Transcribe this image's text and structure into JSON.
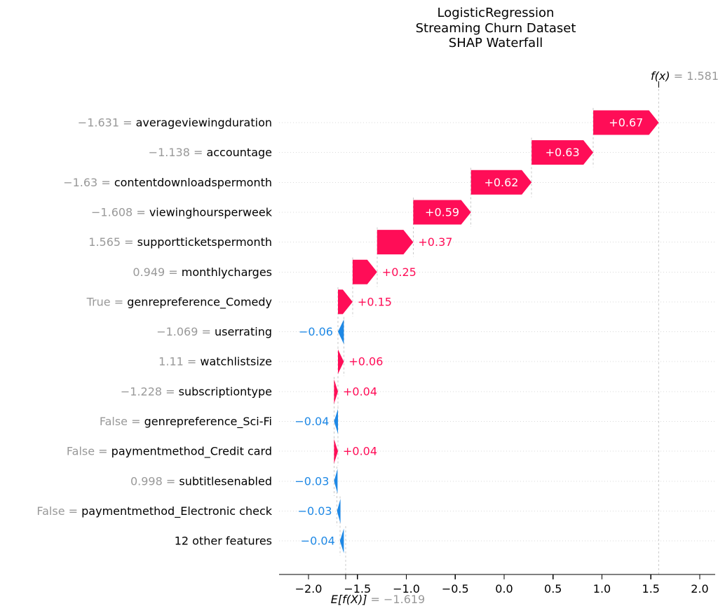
{
  "title": {
    "line1": "LogisticRegression",
    "line2": "Streaming Churn Dataset",
    "line3": "SHAP Waterfall"
  },
  "annotations": {
    "fx": {
      "name": "f(x)",
      "value_text": " = 1.581"
    },
    "ef": {
      "name": "E[f(X)]",
      "value_text": " = −1.619"
    }
  },
  "colors": {
    "positive": "#ff0d57",
    "negative": "#1e88e5",
    "muted_text": "#999999",
    "gridline": "#d9d9d9",
    "connector": "#c9c9c9",
    "axis": "#000000",
    "bar_inner_label": "#ffffff"
  },
  "chart_data": {
    "type": "bar",
    "subtype": "shap-waterfall",
    "title": "LogisticRegression\nStreaming Churn Dataset\nSHAP Waterfall",
    "base_value": -1.619,
    "prediction": 1.581,
    "base_value_label": "E[f(X)] = −1.619",
    "prediction_label": "f(x) = 1.581",
    "xlim": [
      -2.3,
      2.16
    ],
    "x_ticks": [
      -2.0,
      -1.5,
      -1.0,
      -0.5,
      0.0,
      0.5,
      1.0,
      1.5,
      2.0
    ],
    "grid": "dotted horizontal line per feature row",
    "legend": "none",
    "rows": [
      {
        "value": "−1.631",
        "feature": "averageviewingduration",
        "shap": 0.67,
        "label": "+0.67"
      },
      {
        "value": "−1.138",
        "feature": "accountage",
        "shap": 0.63,
        "label": "+0.63"
      },
      {
        "value": "−1.63",
        "feature": "contentdownloadspermonth",
        "shap": 0.62,
        "label": "+0.62"
      },
      {
        "value": "−1.608",
        "feature": "viewinghoursperweek",
        "shap": 0.59,
        "label": "+0.59"
      },
      {
        "value": "1.565",
        "feature": "supportticketspermonth",
        "shap": 0.37,
        "label": "+0.37"
      },
      {
        "value": "0.949",
        "feature": "monthlycharges",
        "shap": 0.25,
        "label": "+0.25"
      },
      {
        "value": "True",
        "feature": "genrepreference_Comedy",
        "shap": 0.15,
        "label": "+0.15"
      },
      {
        "value": "−1.069",
        "feature": "userrating",
        "shap": -0.06,
        "label": "−0.06"
      },
      {
        "value": "1.11",
        "feature": "watchlistsize",
        "shap": 0.06,
        "label": "+0.06"
      },
      {
        "value": "−1.228",
        "feature": "subscriptiontype",
        "shap": 0.04,
        "label": "+0.04"
      },
      {
        "value": "False",
        "feature": "genrepreference_Sci-Fi",
        "shap": -0.04,
        "label": "−0.04"
      },
      {
        "value": "False",
        "feature": "paymentmethod_Credit card",
        "shap": 0.04,
        "label": "+0.04"
      },
      {
        "value": "0.998",
        "feature": "subtitlesenabled",
        "shap": -0.03,
        "label": "−0.03"
      },
      {
        "value": "False",
        "feature": "paymentmethod_Electronic check",
        "shap": -0.03,
        "label": "−0.03"
      },
      {
        "value": null,
        "feature": "12 other features",
        "shap": -0.04,
        "label": "−0.04"
      }
    ]
  }
}
